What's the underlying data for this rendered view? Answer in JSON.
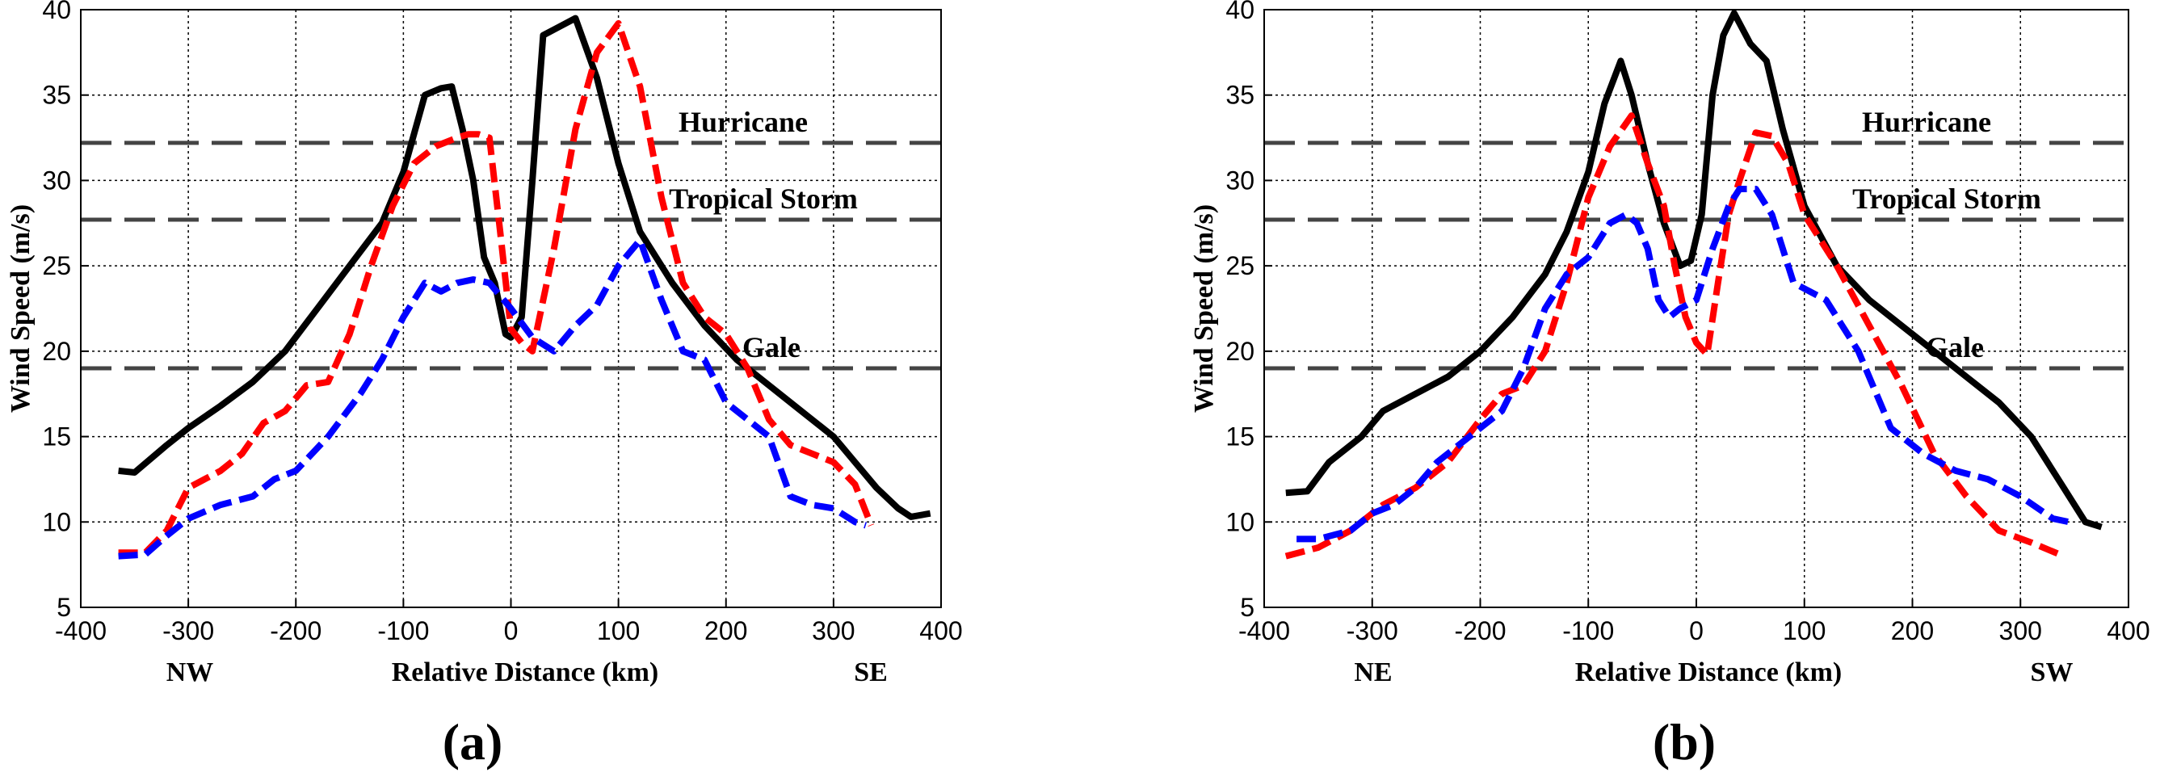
{
  "chart_data": [
    {
      "type": "line",
      "panel_label": "(a)",
      "panel_letter": "a",
      "xlabel": "Relative Distance (km)",
      "ylabel": "Wind Speed (m/s)",
      "xlim": [
        -400,
        400
      ],
      "ylim": [
        5,
        40
      ],
      "xticks": [
        -400,
        -300,
        -200,
        -100,
        0,
        100,
        200,
        300,
        400
      ],
      "yticks": [
        5,
        10,
        15,
        20,
        25,
        30,
        35,
        40
      ],
      "grid": true,
      "direction_left": "NW",
      "direction_right": "SE",
      "reference_lines": [
        {
          "label": "Hurricane",
          "y": 32.2
        },
        {
          "label": "Tropical Storm",
          "y": 27.7
        },
        {
          "label": "Gale",
          "y": 19.0
        }
      ],
      "series": [
        {
          "name": "black",
          "color": "#000000",
          "dashed": false,
          "x": [
            -365,
            -350,
            -320,
            -300,
            -270,
            -240,
            -210,
            -180,
            -150,
            -120,
            -100,
            -80,
            -65,
            -55,
            -45,
            -35,
            -25,
            -15,
            -5,
            0,
            10,
            20,
            30,
            45,
            60,
            80,
            100,
            120,
            150,
            180,
            210,
            240,
            270,
            300,
            320,
            340,
            360,
            372,
            390
          ],
          "y": [
            13,
            12.9,
            14.5,
            15.5,
            16.8,
            18.2,
            20,
            22.5,
            25,
            27.5,
            30.5,
            35,
            35.4,
            35.5,
            33,
            30,
            25.5,
            24,
            21,
            20.8,
            22,
            30,
            38.5,
            39,
            39.5,
            36,
            31,
            27,
            24,
            21.5,
            19.5,
            18,
            16.5,
            15,
            13.5,
            12,
            10.8,
            10.3,
            10.5
          ]
        },
        {
          "name": "red",
          "color": "#ff0000",
          "dashed": true,
          "x": [
            -365,
            -340,
            -320,
            -300,
            -270,
            -250,
            -230,
            -210,
            -190,
            -170,
            -150,
            -130,
            -110,
            -90,
            -70,
            -50,
            -40,
            -30,
            -20,
            -10,
            0,
            10,
            20,
            40,
            60,
            80,
            100,
            120,
            140,
            160,
            180,
            200,
            220,
            240,
            260,
            280,
            300,
            320,
            335
          ],
          "y": [
            8.2,
            8.2,
            9.5,
            12,
            13,
            14,
            15.8,
            16.5,
            18,
            18.2,
            21,
            25,
            28.5,
            31,
            32,
            32.5,
            32.7,
            32.7,
            32.5,
            27,
            21.3,
            20.5,
            20,
            26,
            33,
            37.5,
            39.2,
            35.5,
            29,
            24,
            22,
            21,
            19,
            16,
            14.5,
            14,
            13.5,
            12.2,
            9.8
          ]
        },
        {
          "name": "blue",
          "color": "#0000ff",
          "dashed": true,
          "x": [
            -365,
            -340,
            -320,
            -300,
            -270,
            -240,
            -220,
            -200,
            -170,
            -140,
            -120,
            -100,
            -80,
            -65,
            -50,
            -35,
            -20,
            0,
            20,
            40,
            60,
            80,
            100,
            120,
            140,
            160,
            180,
            200,
            220,
            240,
            260,
            280,
            300,
            320,
            330
          ],
          "y": [
            8,
            8.1,
            9.2,
            10.2,
            11,
            11.5,
            12.5,
            13,
            15,
            17.5,
            19.5,
            22,
            24,
            23.5,
            24,
            24.2,
            24,
            22.5,
            20.8,
            20,
            21.5,
            22.7,
            25,
            26.5,
            23,
            20,
            19.5,
            17,
            16,
            15,
            11.5,
            11,
            10.8,
            10,
            9.8
          ]
        }
      ]
    },
    {
      "type": "line",
      "panel_label": "(b)",
      "panel_letter": "b",
      "xlabel": "Relative Distance (km)",
      "ylabel": "Wind Speed (m/s)",
      "xlim": [
        -400,
        400
      ],
      "ylim": [
        5,
        40
      ],
      "xticks": [
        -400,
        -300,
        -200,
        -100,
        0,
        100,
        200,
        300,
        400
      ],
      "yticks": [
        5,
        10,
        15,
        20,
        25,
        30,
        35,
        40
      ],
      "grid": true,
      "direction_left": "NE",
      "direction_right": "SW",
      "reference_lines": [
        {
          "label": "Hurricane",
          "y": 32.2
        },
        {
          "label": "Tropical Storm",
          "y": 27.7
        },
        {
          "label": "Gale",
          "y": 19.0
        }
      ],
      "series": [
        {
          "name": "black",
          "color": "#000000",
          "dashed": false,
          "x": [
            -380,
            -360,
            -340,
            -310,
            -290,
            -260,
            -230,
            -200,
            -170,
            -140,
            -120,
            -100,
            -85,
            -70,
            -60,
            -45,
            -30,
            -15,
            -5,
            5,
            15,
            25,
            35,
            50,
            65,
            80,
            100,
            130,
            160,
            190,
            220,
            250,
            280,
            310,
            340,
            360,
            375
          ],
          "y": [
            11.7,
            11.8,
            13.5,
            15,
            16.5,
            17.5,
            18.5,
            20,
            22,
            24.5,
            27,
            30.5,
            34.5,
            37,
            35,
            31,
            27.5,
            25,
            25.3,
            28,
            35,
            38.5,
            39.8,
            38,
            37,
            33,
            28.5,
            25,
            23,
            21.5,
            20,
            18.5,
            17,
            15,
            12,
            10,
            9.7
          ]
        },
        {
          "name": "red",
          "color": "#ff0000",
          "dashed": true,
          "x": [
            -380,
            -350,
            -320,
            -290,
            -260,
            -230,
            -200,
            -180,
            -160,
            -140,
            -120,
            -100,
            -80,
            -60,
            -45,
            -30,
            -20,
            -10,
            0,
            10,
            20,
            30,
            40,
            55,
            70,
            85,
            100,
            130,
            160,
            190,
            220,
            250,
            280,
            310,
            340
          ],
          "y": [
            8,
            8.5,
            9.5,
            11,
            12,
            13.5,
            16,
            17.5,
            18,
            20,
            24,
            29,
            32,
            33.8,
            31,
            28.5,
            25,
            22,
            20.5,
            19.8,
            24,
            28,
            30,
            32.8,
            32.6,
            31,
            28,
            25,
            21.5,
            18,
            14,
            11.5,
            9.5,
            8.8,
            8
          ]
        },
        {
          "name": "blue",
          "color": "#0000ff",
          "dashed": true,
          "x": [
            -370,
            -350,
            -320,
            -300,
            -280,
            -260,
            -240,
            -220,
            -200,
            -180,
            -160,
            -140,
            -120,
            -100,
            -80,
            -65,
            -55,
            -45,
            -35,
            -25,
            -15,
            0,
            15,
            30,
            40,
            55,
            70,
            90,
            120,
            150,
            180,
            210,
            240,
            270,
            300,
            330,
            345
          ],
          "y": [
            9,
            9,
            9.5,
            10.5,
            11,
            12,
            13.5,
            14.5,
            15.5,
            16.5,
            19,
            22.5,
            24.5,
            25.5,
            27.5,
            28,
            27.5,
            26,
            23,
            22,
            22.5,
            23,
            26,
            28.5,
            29.5,
            29.5,
            28,
            24,
            23,
            20,
            15.5,
            14,
            13,
            12.5,
            11.5,
            10.2,
            10
          ]
        }
      ]
    }
  ]
}
